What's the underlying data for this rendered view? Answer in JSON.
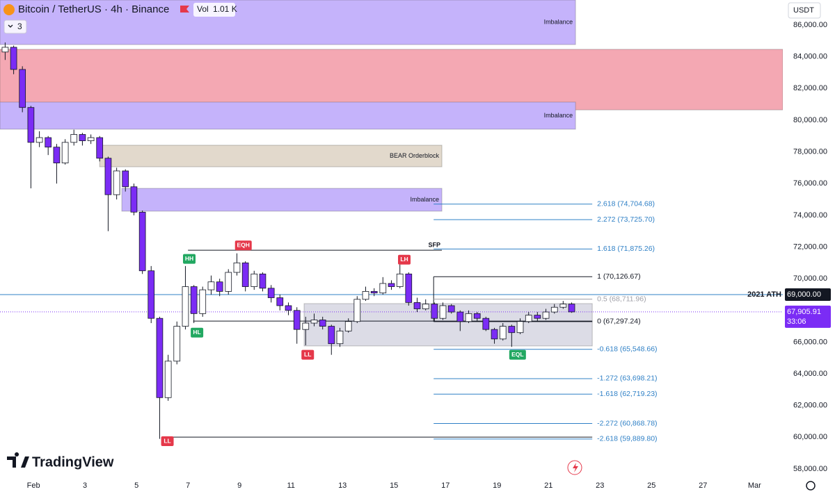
{
  "header": {
    "symbol": "Bitcoin / TetherUS · 4h · Binance",
    "volume_name": "Vol",
    "volume": "1.01 K",
    "indicators": 3
  },
  "currency": "USDT",
  "watermark": "TradingView",
  "chart_data": {
    "type": "candlestick",
    "up_color": "#ffffff",
    "down_color": "#7b2cf5",
    "outline_color": "#131722",
    "x": [
      -0.1,
      0.23,
      0.57,
      0.9,
      1.23,
      1.57,
      1.9,
      2.23,
      2.57,
      2.9,
      3.23,
      3.57,
      3.9,
      4.23,
      4.57,
      4.9,
      5.23,
      5.57,
      5.9,
      6.23,
      6.57,
      6.9,
      7.23,
      7.57,
      7.9,
      8.23,
      8.57,
      8.9,
      9.23,
      9.57,
      9.9,
      10.23,
      10.57,
      10.9,
      11.23,
      11.57,
      11.9,
      12.23,
      12.57,
      12.9,
      13.23,
      13.57,
      13.9,
      14.23,
      14.57,
      14.9,
      15.23,
      15.57,
      15.9,
      16.23,
      16.57,
      16.9,
      17.23,
      17.57,
      17.9,
      18.23,
      18.57,
      18.9,
      19.23,
      19.57,
      19.9,
      20.23,
      20.57,
      20.9,
      21.23,
      21.57,
      21.9
    ],
    "open": [
      84300,
      84600,
      83200,
      80800,
      78600,
      78900,
      78300,
      77300,
      78600,
      79100,
      78700,
      78900,
      77600,
      75300,
      76800,
      75800,
      74200,
      70500,
      67500,
      62500,
      64800,
      67000,
      69500,
      67800,
      69300,
      69800,
      69200,
      70400,
      71000,
      69500,
      70300,
      69400,
      68800,
      68300,
      68000,
      66800,
      67200,
      67400,
      67000,
      65900,
      66700,
      67300,
      68700,
      69200,
      69100,
      69700,
      69500,
      70300,
      68500,
      68100,
      68400,
      67500,
      68300,
      67900,
      67300,
      67800,
      67500,
      66800,
      66200,
      67000,
      66600,
      67300,
      67700,
      67500,
      67900,
      68200,
      68400
    ],
    "high": [
      84900,
      84700,
      83400,
      80900,
      79300,
      79000,
      78500,
      78800,
      79400,
      79200,
      79100,
      79000,
      77700,
      77000,
      76900,
      76000,
      74300,
      70800,
      67600,
      65200,
      67300,
      70800,
      69600,
      69500,
      70200,
      70000,
      70600,
      71600,
      71100,
      70500,
      70400,
      69600,
      69000,
      68500,
      68200,
      67600,
      67800,
      67600,
      67100,
      66900,
      67500,
      68900,
      69500,
      69400,
      70100,
      69900,
      70900,
      70400,
      68800,
      68700,
      68500,
      68500,
      68400,
      68000,
      68000,
      67900,
      67600,
      66900,
      67200,
      67100,
      67500,
      67900,
      67900,
      68100,
      68400,
      68600,
      68500
    ],
    "low": [
      83800,
      82900,
      80500,
      75700,
      78300,
      77800,
      76000,
      77200,
      78400,
      78400,
      78500,
      77400,
      73000,
      75000,
      75500,
      74000,
      70300,
      67200,
      59900,
      62300,
      64600,
      66800,
      67200,
      67600,
      69000,
      68900,
      69000,
      70200,
      69200,
      69300,
      69200,
      68500,
      68000,
      67700,
      65900,
      65800,
      67000,
      66800,
      65200,
      65700,
      66600,
      67200,
      68600,
      68900,
      69000,
      69300,
      69400,
      68300,
      67900,
      68000,
      67300,
      67400,
      67800,
      66700,
      67200,
      67300,
      66700,
      65900,
      66100,
      65700,
      66500,
      67200,
      67300,
      67400,
      67800,
      68100,
      67850
    ],
    "close": [
      84600,
      83200,
      80800,
      78600,
      78900,
      78300,
      77300,
      78600,
      79100,
      78700,
      78900,
      77600,
      75300,
      76800,
      75800,
      74200,
      70500,
      67500,
      62500,
      64800,
      67000,
      69500,
      67800,
      69300,
      69800,
      69200,
      70400,
      71000,
      69500,
      70300,
      69400,
      68800,
      68300,
      68000,
      66800,
      67200,
      67400,
      67000,
      65900,
      66700,
      67300,
      68700,
      69200,
      69100,
      69700,
      69500,
      70300,
      68500,
      68100,
      68400,
      67500,
      68300,
      67900,
      67300,
      67800,
      67500,
      66800,
      66200,
      67000,
      66600,
      67300,
      67700,
      67500,
      67900,
      68200,
      68400,
      67905.91
    ],
    "last_label": "67,905.91",
    "countdown": "33:06",
    "xlim": [
      -0.3,
      30.1
    ],
    "xticks": [
      {
        "value": 1,
        "label": "Feb"
      },
      3,
      5,
      7,
      9,
      11,
      13,
      15,
      17,
      19,
      21,
      23,
      25,
      27,
      {
        "value": 29,
        "label": "Mar"
      }
    ],
    "ylim": [
      57560,
      87580
    ],
    "yticks": [
      {
        "value": 58000,
        "label": "58,000.00"
      },
      {
        "value": 60000,
        "label": "60,000.00"
      },
      {
        "value": 62000,
        "label": "62,000.00"
      },
      {
        "value": 64000,
        "label": "64,000.00"
      },
      {
        "value": 66000,
        "label": "66,000.00"
      },
      {
        "value": 68000,
        "label": "68,000.00"
      },
      {
        "value": 70000,
        "label": "70,000.00"
      },
      {
        "value": 72000,
        "label": "72,000.00"
      },
      {
        "value": 74000,
        "label": "74,000.00"
      },
      {
        "value": 76000,
        "label": "76,000.00"
      },
      {
        "value": 78000,
        "label": "78,000.00"
      },
      {
        "value": 80000,
        "label": "80,000.00"
      },
      {
        "value": 82000,
        "label": "82,000.00"
      },
      {
        "value": 84000,
        "label": "84,000.00"
      },
      {
        "value": 86000,
        "label": "86,000.00"
      }
    ],
    "grid": false,
    "zones": [
      {
        "label": "Imbalance",
        "color": "#c5b3fb",
        "top": 87580,
        "bottom": 84770,
        "x0": -0.3,
        "x1": 22.05
      },
      {
        "color": "#f4a8b3",
        "top": 84470,
        "bottom": 80650,
        "x0": -0.3,
        "x1": 30.1
      },
      {
        "label": "Imbalance",
        "color": "#c5b3fb",
        "top": 81140,
        "bottom": 79430,
        "x0": -0.3,
        "x1": 22.05
      },
      {
        "label": "BEAR Orderblock",
        "color": "#e2d9cc",
        "top": 78420,
        "bottom": 77060,
        "x0": 3.57,
        "x1": 16.86
      },
      {
        "label": "Imbalance",
        "color": "#c5b3fb",
        "top": 75700,
        "bottom": 74260,
        "x0": 4.43,
        "x1": 16.86
      },
      {
        "color": "#dcdce6",
        "top": 68430,
        "bottom": 65760,
        "x0": 11.51,
        "x1": 22.7
      }
    ],
    "ath": {
      "label": "2021 ATH",
      "value": 69000,
      "value_label": "69,000.00",
      "color": "#2f80c6"
    },
    "levels": [
      {
        "label": "SFP",
        "value": 71800,
        "x0": 7.0,
        "x1": 16.86
      },
      {
        "value": 67330,
        "x0": 7.2,
        "x1": 22.7
      },
      {
        "value": 60010,
        "x0": 6.0,
        "x1": 22.7
      }
    ],
    "fib": {
      "x0": 16.54,
      "x1": 22.7,
      "values": [
        74704.68,
        73725.7,
        71875.26,
        70126.67,
        68711.96,
        67297.24,
        65548.66,
        63698.21,
        62719.23,
        60868.78,
        59889.8
      ],
      "value_labels": [
        "2.618 (74,704.68)",
        "2.272 (73,725.70)",
        "1.618 (71,875.26)",
        "1 (70,126.67)",
        "0.5 (68,711.96)",
        "0 (67,297.24)",
        "-0.618 (65,548.66)",
        "-1.272 (63,698.21)",
        "-1.618 (62,719.23)",
        "-2.272 (60,868.78)",
        "-2.618 (59,889.80)"
      ],
      "colors": [
        "#2f80c6",
        "#2f80c6",
        "#2f80c6",
        "#131722",
        "#a0a0a8",
        "#131722",
        "#2f80c6",
        "#2f80c6",
        "#2f80c6",
        "#2f80c6",
        "#2f80c6"
      ]
    },
    "markers": [
      {
        "label": "HH",
        "x": 7.05,
        "value": 71250,
        "color": "#22a861"
      },
      {
        "label": "HL",
        "x": 7.35,
        "value": 66600,
        "color": "#22a861"
      },
      {
        "label": "EQH",
        "x": 9.15,
        "value": 72100,
        "color": "#e5384a"
      },
      {
        "label": "LL",
        "x": 11.65,
        "value": 65200,
        "color": "#e5384a"
      },
      {
        "label": "LH",
        "x": 15.4,
        "value": 71200,
        "color": "#e5384a"
      },
      {
        "label": "EQL",
        "x": 19.8,
        "value": 65200,
        "color": "#22a861"
      },
      {
        "label": "LL",
        "x": 6.2,
        "value": 59750,
        "color": "#e5384a"
      }
    ]
  }
}
